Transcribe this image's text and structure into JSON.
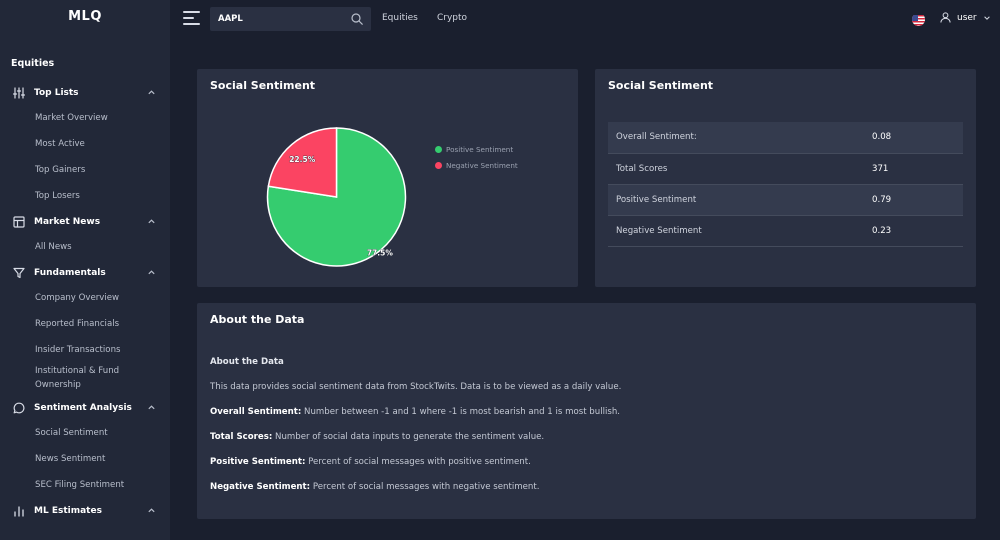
{
  "app": {
    "logo": "MLQ"
  },
  "sidebar": {
    "heading": "Equities",
    "groups": [
      {
        "label": "Top Lists",
        "icon": "sliders-icon",
        "items": [
          "Market Overview",
          "Most Active",
          "Top Gainers",
          "Top Losers"
        ]
      },
      {
        "label": "Market News",
        "icon": "layout-icon",
        "items": [
          "All News"
        ]
      },
      {
        "label": "Fundamentals",
        "icon": "filter-icon",
        "items": [
          "Company Overview",
          "Reported Financials",
          "Insider Transactions",
          "Institutional & Fund Ownership"
        ]
      },
      {
        "label": "Sentiment Analysis",
        "icon": "message-circle-icon",
        "items": [
          "Social Sentiment",
          "News Sentiment",
          "SEC Filing Sentiment"
        ]
      },
      {
        "label": "ML Estimates",
        "icon": "bar-chart-icon",
        "items": []
      }
    ]
  },
  "topbar": {
    "search_value": "AAPL",
    "nav": [
      "Equities",
      "Crypto"
    ],
    "user_label": "user"
  },
  "chart_card": {
    "title": "Social Sentiment",
    "chart_data": {
      "type": "pie",
      "categories": [
        "Positive Sentiment",
        "Negative Sentiment"
      ],
      "values": [
        77.5,
        22.5
      ],
      "labels": [
        "77.5%",
        "22.5%"
      ],
      "colors": [
        "#35cc6f",
        "#fb4462"
      ],
      "legend": "right"
    }
  },
  "table_card": {
    "title": "Social Sentiment",
    "rows": [
      {
        "label": "Overall Sentiment:",
        "value": "0.08"
      },
      {
        "label": "Total Scores",
        "value": "371"
      },
      {
        "label": "Positive Sentiment",
        "value": "0.79"
      },
      {
        "label": "Negative Sentiment",
        "value": "0.23"
      }
    ]
  },
  "about": {
    "title": "About the Data",
    "subtitle": "About the Data",
    "intro": "This data provides social sentiment data from StockTwits. Data is to be viewed as a daily value.",
    "defs": [
      {
        "term": "Overall Sentiment:",
        "text": " Number between -1 and 1 where -1 is most bearish and 1 is most bullish."
      },
      {
        "term": "Total Scores:",
        "text": " Number of social data inputs to generate the sentiment value."
      },
      {
        "term": "Positive Sentiment:",
        "text": " Percent of social messages with positive sentiment."
      },
      {
        "term": "Negative Sentiment:",
        "text": " Percent of social messages with negative sentiment."
      }
    ]
  }
}
